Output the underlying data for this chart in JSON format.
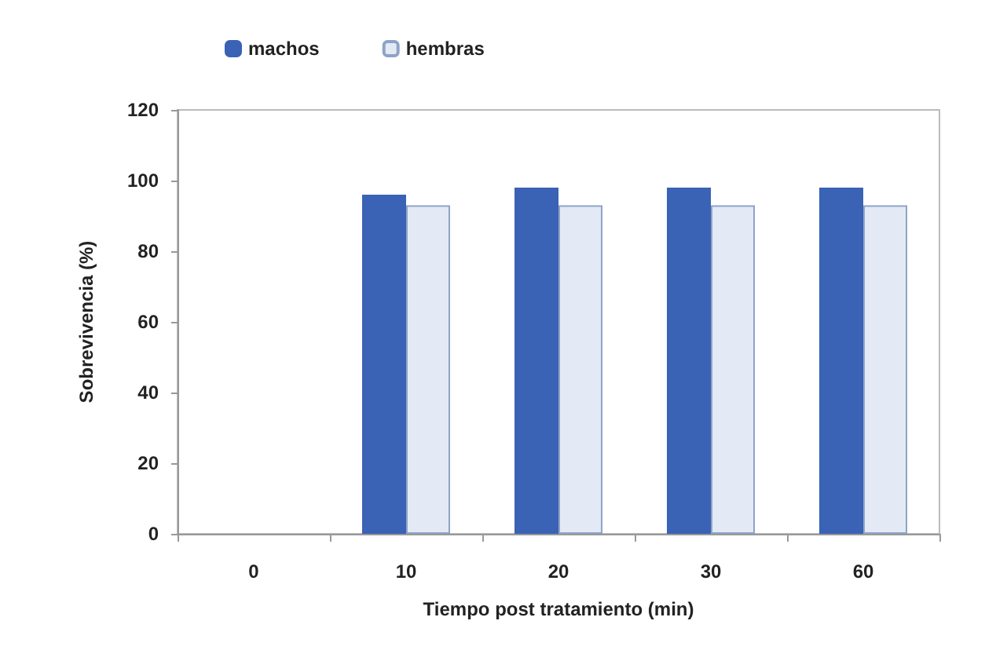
{
  "chart_data": {
    "type": "bar",
    "xlabel": "Tiempo post tratamiento (min)",
    "ylabel": "Sobrevivencia (%)",
    "categories": [
      "0",
      "10",
      "20",
      "30",
      "60"
    ],
    "series": [
      {
        "name": "machos",
        "color": "#3a62b5",
        "values": [
          0,
          96,
          98,
          98,
          98
        ]
      },
      {
        "name": "hembras",
        "color": "#e3eaf5",
        "values": [
          0,
          93,
          93,
          93,
          93
        ]
      }
    ],
    "ylim": [
      0,
      120
    ],
    "yticks": [
      0,
      20,
      40,
      60,
      80,
      100,
      120
    ],
    "grid": false,
    "legend": "top left"
  }
}
